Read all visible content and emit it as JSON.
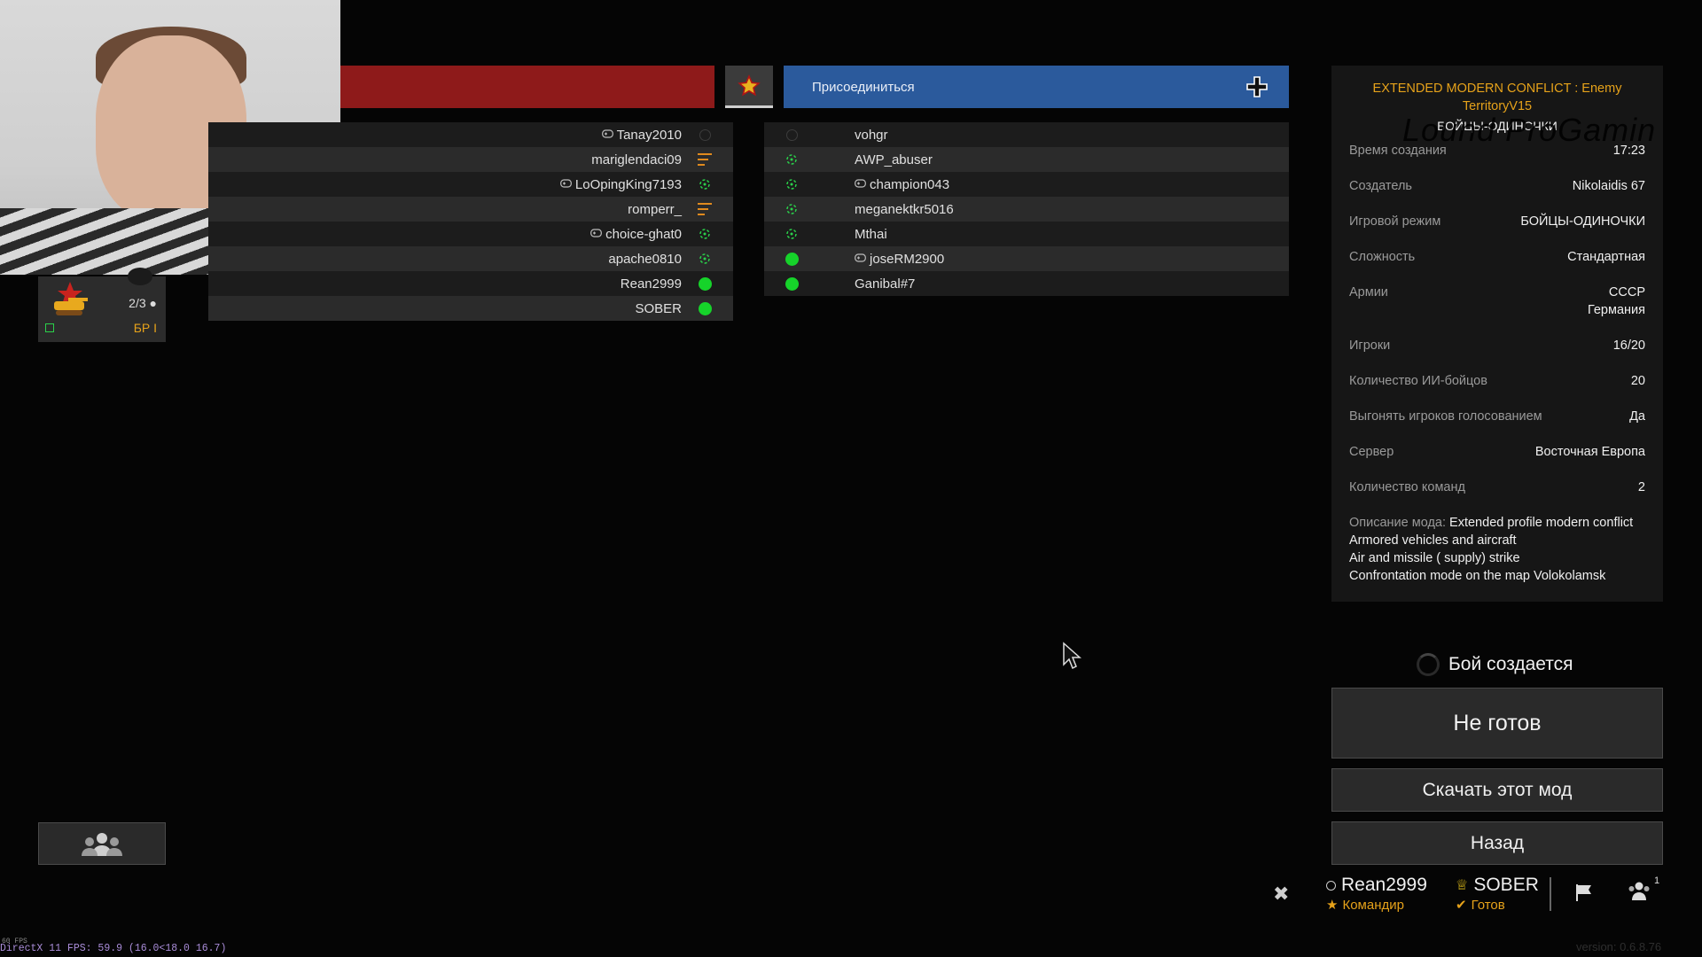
{
  "lobby": {
    "join_label": "Присоединиться",
    "left_team": [
      {
        "name": "Tanay2010",
        "gamepad": true,
        "status": "empty"
      },
      {
        "name": "mariglendaci09",
        "gamepad": false,
        "status": "bars"
      },
      {
        "name": "LoOpingKing7193",
        "gamepad": true,
        "status": "crosshair"
      },
      {
        "name": "romperr_",
        "gamepad": false,
        "status": "bars"
      },
      {
        "name": "choice-ghat0",
        "gamepad": true,
        "status": "crosshair"
      },
      {
        "name": "apache0810",
        "gamepad": false,
        "status": "crosshair"
      },
      {
        "name": "Rean2999",
        "gamepad": false,
        "status": "ready"
      },
      {
        "name": "SOBER",
        "gamepad": false,
        "status": "ready"
      }
    ],
    "right_team": [
      {
        "name": "vohgr",
        "gamepad": false,
        "status": "empty"
      },
      {
        "name": "AWP_abuser",
        "gamepad": false,
        "status": "crosshair"
      },
      {
        "name": "champion043",
        "gamepad": true,
        "status": "crosshair"
      },
      {
        "name": "meganektkr5016",
        "gamepad": false,
        "status": "crosshair"
      },
      {
        "name": "Mthai",
        "gamepad": false,
        "status": "crosshair"
      },
      {
        "name": "joseRM2900",
        "gamepad": true,
        "status": "ready"
      },
      {
        "name": "Ganibal#7",
        "gamepad": false,
        "status": "ready"
      }
    ]
  },
  "rank_card": {
    "count": "2/3",
    "br": "БР I"
  },
  "info": {
    "title": "EXTENDED MODERN CONFLICT : Enemy TerritoryV15",
    "mode_subtitle": "БОЙЦЫ-ОДИНОЧКИ",
    "watermark": "Lound ProGamin",
    "rows": [
      {
        "key": "Время создания",
        "value": "17:23"
      },
      {
        "key": "Создатель",
        "value": "Nikolaidis 67"
      },
      {
        "key": "Игровой режим",
        "value": "БОЙЦЫ-ОДИНОЧКИ"
      },
      {
        "key": "Сложность",
        "value": "Стандартная"
      },
      {
        "key": "Армии",
        "value": "СССР\nГермания"
      },
      {
        "key": "Игроки",
        "value": "16/20"
      },
      {
        "key": "Количество ИИ-бойцов",
        "value": "20"
      },
      {
        "key": "Выгонять игроков голосованием",
        "value": "Да"
      },
      {
        "key": "Сервер",
        "value": "Восточная Европа"
      },
      {
        "key": "Количество команд",
        "value": "2"
      }
    ],
    "description_key": "Описание мода:",
    "description_lines": [
      "Extended profile modern conflict",
      "Armored vehicles and aircraft",
      "Air and missile ( supply) strike",
      "Confrontation mode on the map Volokolamsk"
    ]
  },
  "actions": {
    "creating": "Бой создается",
    "not_ready": "Не готов",
    "download": "Скачать этот мод",
    "back": "Назад"
  },
  "squad": [
    {
      "name": "Rean2999",
      "role": "Командир"
    },
    {
      "name": "SOBER",
      "role": "Готов"
    }
  ],
  "party_count": "1",
  "fps_top": "60 FPS",
  "fps": "DirectX 11 FPS: 59.9 (16.0<18.0 16.7)",
  "version": "version: 0.6.8.76",
  "colors": {
    "red_team": "#8e1a1a",
    "blue_team": "#2b5a9c",
    "accent": "#e6a21a",
    "ready": "#16d32a"
  }
}
